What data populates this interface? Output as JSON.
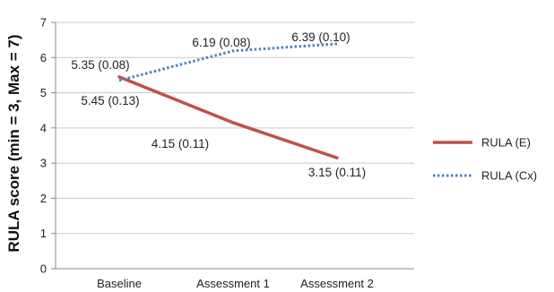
{
  "chart_data": {
    "type": "line",
    "title": "",
    "xlabel": "",
    "ylabel": "RULA score (min = 3, Max = 7)",
    "categories": [
      "Baseline",
      "Assessment 1",
      "Assessment 2"
    ],
    "ylim": [
      0,
      7
    ],
    "yticks": [
      0,
      1,
      2,
      3,
      4,
      5,
      6,
      7
    ],
    "grid": true,
    "legend_position": "right",
    "series": [
      {
        "name": "RULA (E)",
        "color": "#c0504d",
        "style": "solid",
        "values": [
          5.45,
          4.15,
          3.15
        ],
        "labels": [
          "5.45 (0.13)",
          "4.15 (0.11)",
          "3.15 (0.11)"
        ]
      },
      {
        "name": "RULA (Cx)",
        "color": "#4f81bd",
        "style": "dotted",
        "values": [
          5.35,
          6.19,
          6.39
        ],
        "labels": [
          "5.35 (0.08)",
          "6.19 (0.08)",
          "6.39 (0.10)"
        ]
      }
    ]
  }
}
